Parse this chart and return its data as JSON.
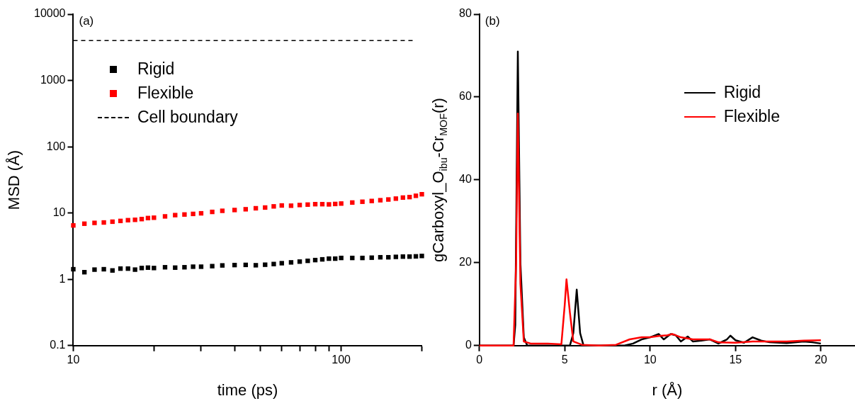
{
  "chart_data": [
    {
      "type": "scatter",
      "xlabel": "time (ps)",
      "ylabel": "MSD (Å)",
      "log": "xy",
      "marker": "square",
      "legend": "top left",
      "xlim": [
        10,
        200
      ],
      "xticks": [
        10,
        {
          "value": 20,
          "label": null
        },
        {
          "value": 30,
          "label": null
        },
        {
          "value": 40,
          "label": null
        },
        {
          "value": 50,
          "label": null
        },
        {
          "value": 60,
          "label": null
        },
        {
          "value": 70,
          "label": null
        },
        {
          "value": 80,
          "label": null
        },
        {
          "value": 90,
          "label": null
        },
        100,
        {
          "value": 200,
          "label": null
        }
      ],
      "ylim": [
        0.1,
        10000
      ],
      "yticks": [
        0.1,
        1,
        10,
        100,
        1000,
        10000
      ],
      "annotations": [
        "(a)"
      ],
      "ref_lines": [
        {
          "axis": "y",
          "value": 4000,
          "label": "Cell boundary",
          "color": "#000000",
          "line_style": "dashed"
        }
      ],
      "series": [
        {
          "name": "Rigid",
          "color": "#000000",
          "x": [
            10,
            11,
            12,
            13,
            14,
            15,
            16,
            17,
            18,
            19,
            20,
            22,
            24,
            26,
            28,
            30,
            33,
            36,
            40,
            44,
            48,
            52,
            56,
            60,
            65,
            70,
            75,
            80,
            85,
            90,
            95,
            100,
            110,
            120,
            130,
            140,
            150,
            160,
            170,
            180,
            190,
            200
          ],
          "values": [
            1.42,
            1.28,
            1.4,
            1.42,
            1.36,
            1.45,
            1.45,
            1.4,
            1.48,
            1.5,
            1.48,
            1.52,
            1.5,
            1.52,
            1.55,
            1.55,
            1.58,
            1.62,
            1.64,
            1.65,
            1.63,
            1.66,
            1.7,
            1.75,
            1.8,
            1.85,
            1.9,
            1.95,
            2.0,
            2.05,
            2.05,
            2.1,
            2.1,
            2.1,
            2.12,
            2.15,
            2.15,
            2.18,
            2.2,
            2.2,
            2.22,
            2.25
          ]
        },
        {
          "name": "Flexible",
          "color": "#ff0000",
          "x": [
            10,
            11,
            12,
            13,
            14,
            15,
            16,
            17,
            18,
            19,
            20,
            22,
            24,
            26,
            28,
            30,
            33,
            36,
            40,
            44,
            48,
            52,
            56,
            60,
            65,
            70,
            75,
            80,
            85,
            90,
            95,
            100,
            110,
            120,
            130,
            140,
            150,
            160,
            170,
            180,
            190,
            200
          ],
          "values": [
            6.5,
            6.9,
            7.1,
            7.2,
            7.4,
            7.6,
            7.8,
            7.9,
            8.1,
            8.4,
            8.5,
            8.9,
            9.3,
            9.5,
            9.7,
            9.9,
            10.4,
            10.8,
            11.1,
            11.4,
            11.8,
            12.1,
            12.6,
            13.0,
            12.9,
            13.2,
            13.4,
            13.6,
            13.6,
            13.5,
            13.7,
            13.9,
            14.4,
            14.8,
            15.2,
            15.6,
            16.0,
            16.5,
            17.1,
            17.4,
            18.2,
            19.2
          ]
        }
      ]
    },
    {
      "type": "line",
      "xlabel": "r (Å)",
      "ylabel": "gCarboxyl_O$_{ibu}$-Cr$_{MOF}$(r)",
      "legend": "top right",
      "xlim": [
        0,
        22
      ],
      "xticks": [
        0,
        5,
        10,
        15,
        20
      ],
      "ylim": [
        0,
        80
      ],
      "yticks": [
        0,
        20,
        40,
        60,
        80
      ],
      "annotations": [
        "(b)"
      ],
      "series": [
        {
          "name": "Rigid",
          "color": "#000000",
          "x": [
            0,
            2.0,
            2.1,
            2.25,
            2.4,
            2.6,
            2.8,
            5.3,
            5.5,
            5.7,
            5.9,
            6.1,
            8.5,
            9,
            9.5,
            10,
            10.5,
            10.8,
            11.2,
            11.5,
            11.8,
            12.2,
            12.5,
            13,
            13.5,
            14,
            14.5,
            14.7,
            15,
            15.5,
            16,
            16.5,
            17,
            18,
            19,
            19.5,
            20
          ],
          "values": [
            0,
            0,
            5,
            71,
            20,
            2,
            0,
            0,
            3,
            13.5,
            3,
            0,
            0,
            0.5,
            1.5,
            2,
            2.8,
            1.5,
            2.8,
            2.5,
            1,
            2.2,
            1,
            1.2,
            1.5,
            0.5,
            1.5,
            2.4,
            1.3,
            0.7,
            2,
            1.2,
            0.8,
            0.6,
            1,
            0.8,
            0.5
          ]
        },
        {
          "name": "Flexible",
          "color": "#ff0000",
          "x": [
            0,
            2.0,
            2.15,
            2.25,
            2.4,
            2.6,
            3,
            4,
            4.8,
            5,
            5.1,
            5.3,
            5.5,
            6,
            7,
            8,
            8.8,
            9.5,
            10,
            10.5,
            11,
            11.3,
            11.8,
            12.5,
            13.5,
            14,
            15,
            16,
            17,
            18,
            19,
            20
          ],
          "values": [
            0,
            0,
            20,
            56,
            15,
            1,
            0.5,
            0.5,
            0.3,
            10,
            16,
            8,
            1,
            0.2,
            0,
            0.2,
            1.5,
            2,
            2,
            2.3,
            2.5,
            2.8,
            2,
            1.5,
            1.5,
            0.8,
            0.7,
            1,
            1,
            1,
            1.2,
            1.3
          ]
        }
      ]
    }
  ]
}
